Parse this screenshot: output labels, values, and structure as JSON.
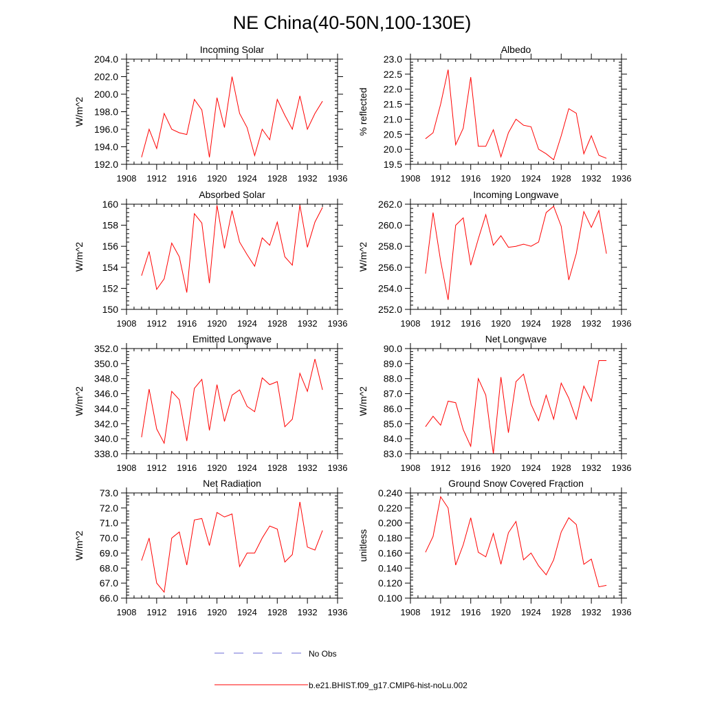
{
  "figure": {
    "title": "NE China(40-50N,100-130E)"
  },
  "legend": [
    {
      "label": "No Obs",
      "color": "#6b6bd6",
      "style": "dashed"
    },
    {
      "label": "b.e21.BHIST.f09_g17.CMIP6-hist-noLu.002",
      "color": "#ff0000",
      "style": "solid"
    }
  ],
  "chart_data": [
    {
      "type": "line",
      "title": "Incoming Solar",
      "ylabel": "W/m^2",
      "xlabel": "",
      "xlim": [
        1908,
        1936
      ],
      "ylim": [
        192,
        204
      ],
      "xticks": [
        "1908",
        "1912",
        "1916",
        "1920",
        "1924",
        "1928",
        "1932",
        "1936"
      ],
      "yticks": [
        "192.0",
        "194.0",
        "196.0",
        "198.0",
        "200.0",
        "202.0",
        "204.0"
      ],
      "x": [
        1910,
        1911,
        1912,
        1913,
        1914,
        1915,
        1916,
        1917,
        1918,
        1919,
        1920,
        1921,
        1922,
        1923,
        1924,
        1925,
        1926,
        1927,
        1928,
        1929,
        1930,
        1931,
        1932,
        1933,
        1934
      ],
      "series": [
        {
          "name": "b.e21.BHIST.f09_g17.CMIP6-hist-noLu.002",
          "color": "#ff0000",
          "values": [
            192.8,
            196.0,
            193.8,
            197.8,
            196.0,
            195.6,
            195.4,
            199.4,
            198.2,
            192.8,
            199.6,
            196.2,
            202.0,
            197.8,
            196.2,
            193.0,
            196.0,
            194.8,
            199.4,
            197.6,
            196.0,
            199.8,
            196.0,
            197.8,
            199.2
          ]
        }
      ],
      "grid": false
    },
    {
      "type": "line",
      "title": "Albedo",
      "ylabel": "% reflected",
      "xlabel": "",
      "xlim": [
        1908,
        1936
      ],
      "ylim": [
        19.5,
        23.0
      ],
      "xticks": [
        "1908",
        "1912",
        "1916",
        "1920",
        "1924",
        "1928",
        "1932",
        "1936"
      ],
      "yticks": [
        "19.5",
        "20.0",
        "20.5",
        "21.0",
        "21.5",
        "22.0",
        "22.5",
        "23.0"
      ],
      "x": [
        1910,
        1911,
        1912,
        1913,
        1914,
        1915,
        1916,
        1917,
        1918,
        1919,
        1920,
        1921,
        1922,
        1923,
        1924,
        1925,
        1926,
        1927,
        1928,
        1929,
        1930,
        1931,
        1932,
        1933,
        1934
      ],
      "series": [
        {
          "name": "b.e21.BHIST.f09_g17.CMIP6-hist-noLu.002",
          "color": "#ff0000",
          "values": [
            20.35,
            20.55,
            21.5,
            22.65,
            20.15,
            20.7,
            22.4,
            20.1,
            20.1,
            20.65,
            19.75,
            20.55,
            21.0,
            20.8,
            20.75,
            20.0,
            19.85,
            19.65,
            20.45,
            21.35,
            21.2,
            19.85,
            20.45,
            19.8,
            19.7
          ]
        }
      ],
      "grid": false
    },
    {
      "type": "line",
      "title": "Absorbed Solar",
      "ylabel": "W/m^2",
      "xlabel": "",
      "xlim": [
        1908,
        1936
      ],
      "ylim": [
        150,
        160
      ],
      "xticks": [
        "1908",
        "1912",
        "1916",
        "1920",
        "1924",
        "1928",
        "1932",
        "1936"
      ],
      "yticks": [
        "150",
        "152",
        "154",
        "156",
        "158",
        "160"
      ],
      "x": [
        1910,
        1911,
        1912,
        1913,
        1914,
        1915,
        1916,
        1917,
        1918,
        1919,
        1920,
        1921,
        1922,
        1923,
        1924,
        1925,
        1926,
        1927,
        1928,
        1929,
        1930,
        1931,
        1932,
        1933,
        1934
      ],
      "series": [
        {
          "name": "b.e21.BHIST.f09_g17.CMIP6-hist-noLu.002",
          "color": "#ff0000",
          "values": [
            153.2,
            155.5,
            151.9,
            152.9,
            156.3,
            155.0,
            151.6,
            159.1,
            158.2,
            152.5,
            159.9,
            155.8,
            159.4,
            156.4,
            155.2,
            154.1,
            156.8,
            156.1,
            158.3,
            155.0,
            154.2,
            159.9,
            155.9,
            158.3,
            159.7
          ]
        }
      ],
      "grid": false
    },
    {
      "type": "line",
      "title": "Incoming Longwave",
      "ylabel": "W/m^2",
      "xlabel": "",
      "xlim": [
        1908,
        1936
      ],
      "ylim": [
        252,
        262
      ],
      "xticks": [
        "1908",
        "1912",
        "1916",
        "1920",
        "1924",
        "1928",
        "1932",
        "1936"
      ],
      "yticks": [
        "252.0",
        "254.0",
        "256.0",
        "258.0",
        "260.0",
        "262.0"
      ],
      "x": [
        1910,
        1911,
        1912,
        1913,
        1914,
        1915,
        1916,
        1917,
        1918,
        1919,
        1920,
        1921,
        1922,
        1923,
        1924,
        1925,
        1926,
        1927,
        1928,
        1929,
        1930,
        1931,
        1932,
        1933,
        1934
      ],
      "series": [
        {
          "name": "b.e21.BHIST.f09_g17.CMIP6-hist-noLu.002",
          "color": "#ff0000",
          "values": [
            255.4,
            261.2,
            256.6,
            252.9,
            260.0,
            260.7,
            256.2,
            258.7,
            261.0,
            258.1,
            259.0,
            257.9,
            258.0,
            258.2,
            258.0,
            258.4,
            261.2,
            261.8,
            259.9,
            254.8,
            257.3,
            261.3,
            259.8,
            261.4,
            257.3
          ]
        }
      ],
      "grid": false
    },
    {
      "type": "line",
      "title": "Emitted Longwave",
      "ylabel": "W/m^2",
      "xlabel": "",
      "xlim": [
        1908,
        1936
      ],
      "ylim": [
        338,
        352
      ],
      "xticks": [
        "1908",
        "1912",
        "1916",
        "1920",
        "1924",
        "1928",
        "1932",
        "1936"
      ],
      "yticks": [
        "338.0",
        "340.0",
        "342.0",
        "344.0",
        "346.0",
        "348.0",
        "350.0",
        "352.0"
      ],
      "x": [
        1910,
        1911,
        1912,
        1913,
        1914,
        1915,
        1916,
        1917,
        1918,
        1919,
        1920,
        1921,
        1922,
        1923,
        1924,
        1925,
        1926,
        1927,
        1928,
        1929,
        1930,
        1931,
        1932,
        1933,
        1934
      ],
      "series": [
        {
          "name": "b.e21.BHIST.f09_g17.CMIP6-hist-noLu.002",
          "color": "#ff0000",
          "values": [
            340.2,
            346.6,
            341.3,
            339.4,
            346.3,
            345.2,
            339.7,
            346.7,
            347.9,
            341.1,
            347.2,
            342.3,
            345.8,
            346.5,
            344.3,
            343.6,
            348.1,
            347.2,
            347.6,
            341.6,
            342.6,
            348.7,
            346.3,
            350.6,
            346.5
          ]
        }
      ],
      "grid": false
    },
    {
      "type": "line",
      "title": "Net Longwave",
      "ylabel": "W/m^2",
      "xlabel": "",
      "xlim": [
        1908,
        1936
      ],
      "ylim": [
        83,
        90
      ],
      "xticks": [
        "1908",
        "1912",
        "1916",
        "1920",
        "1924",
        "1928",
        "1932",
        "1936"
      ],
      "yticks": [
        "83.0",
        "84.0",
        "85.0",
        "86.0",
        "87.0",
        "88.0",
        "89.0",
        "90.0"
      ],
      "x": [
        1910,
        1911,
        1912,
        1913,
        1914,
        1915,
        1916,
        1917,
        1918,
        1919,
        1920,
        1921,
        1922,
        1923,
        1924,
        1925,
        1926,
        1927,
        1928,
        1929,
        1930,
        1931,
        1932,
        1933,
        1934
      ],
      "series": [
        {
          "name": "b.e21.BHIST.f09_g17.CMIP6-hist-noLu.002",
          "color": "#ff0000",
          "values": [
            84.8,
            85.5,
            84.9,
            86.5,
            86.4,
            84.6,
            83.5,
            88.0,
            86.9,
            83.0,
            88.1,
            84.4,
            87.8,
            88.3,
            86.3,
            85.2,
            86.9,
            85.3,
            87.7,
            86.7,
            85.3,
            87.5,
            86.5,
            89.2,
            89.2
          ]
        }
      ],
      "grid": false
    },
    {
      "type": "line",
      "title": "Net Radiation",
      "ylabel": "W/m^2",
      "xlabel": "",
      "xlim": [
        1908,
        1936
      ],
      "ylim": [
        66,
        73
      ],
      "xticks": [
        "1908",
        "1912",
        "1916",
        "1920",
        "1924",
        "1928",
        "1932",
        "1936"
      ],
      "yticks": [
        "66.0",
        "67.0",
        "68.0",
        "69.0",
        "70.0",
        "71.0",
        "72.0",
        "73.0"
      ],
      "x": [
        1910,
        1911,
        1912,
        1913,
        1914,
        1915,
        1916,
        1917,
        1918,
        1919,
        1920,
        1921,
        1922,
        1923,
        1924,
        1925,
        1926,
        1927,
        1928,
        1929,
        1930,
        1931,
        1932,
        1933,
        1934
      ],
      "series": [
        {
          "name": "b.e21.BHIST.f09_g17.CMIP6-hist-noLu.002",
          "color": "#ff0000",
          "values": [
            68.5,
            70.0,
            67.0,
            66.4,
            70.0,
            70.4,
            68.2,
            71.2,
            71.3,
            69.5,
            71.7,
            71.4,
            71.6,
            68.1,
            69.0,
            69.0,
            70.0,
            70.8,
            70.6,
            68.4,
            68.9,
            72.4,
            69.4,
            69.2,
            70.5
          ]
        }
      ],
      "grid": false
    },
    {
      "type": "line",
      "title": "Ground Snow Covered Fraction",
      "ylabel": "unitless",
      "xlabel": "",
      "xlim": [
        1908,
        1936
      ],
      "ylim": [
        0.1,
        0.24
      ],
      "xticks": [
        "1908",
        "1912",
        "1916",
        "1920",
        "1924",
        "1928",
        "1932",
        "1936"
      ],
      "yticks": [
        "0.100",
        "0.120",
        "0.140",
        "0.160",
        "0.180",
        "0.200",
        "0.220",
        "0.240"
      ],
      "x": [
        1910,
        1911,
        1912,
        1913,
        1914,
        1915,
        1916,
        1917,
        1918,
        1919,
        1920,
        1921,
        1922,
        1923,
        1924,
        1925,
        1926,
        1927,
        1928,
        1929,
        1930,
        1931,
        1932,
        1933,
        1934
      ],
      "series": [
        {
          "name": "b.e21.BHIST.f09_g17.CMIP6-hist-noLu.002",
          "color": "#ff0000",
          "values": [
            0.161,
            0.182,
            0.235,
            0.22,
            0.144,
            0.171,
            0.207,
            0.161,
            0.155,
            0.186,
            0.145,
            0.187,
            0.202,
            0.151,
            0.16,
            0.143,
            0.131,
            0.151,
            0.188,
            0.207,
            0.198,
            0.145,
            0.152,
            0.115,
            0.117
          ]
        }
      ],
      "grid": false
    }
  ]
}
